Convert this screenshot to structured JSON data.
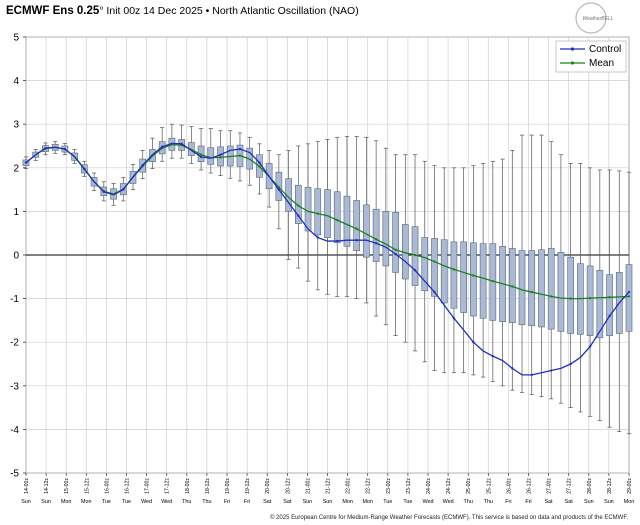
{
  "title": {
    "model": "ECMWF Ens 0.25",
    "degree": "°",
    "rest": " Init 00z 14 Dec 2025 • North Atlantic Oscillation (NAO)"
  },
  "credit": "© 2025 European Centre for Medium-Range Weather Forecasts (ECMWF). This service is based on data and products of the ECMWF.",
  "logo": {
    "text": "WeatherBELL"
  },
  "colors": {
    "control": "#1f2fbf",
    "mean": "#1e7f1e",
    "box": "#aab9d6",
    "box_edge": "#556677",
    "whisker": "#555555",
    "grid": "#cfcfcf",
    "zero": "#000000"
  },
  "chart_data": {
    "type": "box",
    "ylim": [
      -5,
      5
    ],
    "yticks": [
      5,
      4,
      3,
      2,
      1,
      0,
      -1,
      -2,
      -3,
      -4,
      -5
    ],
    "legend": {
      "position": "top-right",
      "entries": [
        "Control",
        "Mean"
      ]
    },
    "x_date_labels": [
      "14-00z",
      "14-12z",
      "15-00z",
      "15-12z",
      "16-00z",
      "16-12z",
      "17-00z",
      "17-12z",
      "18-00z",
      "18-12z",
      "19-00z",
      "19-12z",
      "20-00z",
      "20-12z",
      "21-00z",
      "21-12z",
      "22-00z",
      "22-12z",
      "23-00z",
      "23-12z",
      "24-00z",
      "24-12z",
      "25-00z",
      "25-12z",
      "26-00z",
      "26-12z",
      "27-00z",
      "27-12z",
      "28-00z",
      "28-12z",
      "29-00z"
    ],
    "x_day_labels": [
      "Sun",
      "Sun",
      "Mon",
      "Mon",
      "Tue",
      "Tue",
      "Wed",
      "Wed",
      "Thu",
      "Thu",
      "Fri",
      "Fri",
      "Sat",
      "Sat",
      "Sun",
      "Sun",
      "Mon",
      "Mon",
      "Tue",
      "Tue",
      "Wed",
      "Wed",
      "Thu",
      "Thu",
      "Fri",
      "Fri",
      "Sat",
      "Sat",
      "Sun",
      "Sun",
      "Mon"
    ],
    "series": [
      {
        "name": "Control",
        "values": [
          2.12,
          2.3,
          2.45,
          2.47,
          2.43,
          2.25,
          1.97,
          1.68,
          1.45,
          1.38,
          1.5,
          1.79,
          2.06,
          2.3,
          2.48,
          2.56,
          2.55,
          2.4,
          2.25,
          2.22,
          2.3,
          2.4,
          2.43,
          2.35,
          2.12,
          1.8,
          1.5,
          1.2,
          0.9,
          0.6,
          0.4,
          0.32,
          0.32,
          0.34,
          0.34,
          0.34,
          0.27,
          0.18,
          0.02,
          -0.15,
          -0.35,
          -0.6,
          -0.85,
          -1.15,
          -1.45,
          -1.72,
          -2.0,
          -2.2,
          -2.32,
          -2.42,
          -2.6,
          -2.75,
          -2.75,
          -2.7,
          -2.65,
          -2.6,
          -2.5,
          -2.35,
          -2.1,
          -1.75,
          -1.4,
          -1.1,
          -0.85
        ]
      },
      {
        "name": "Mean",
        "values": [
          2.12,
          2.3,
          2.44,
          2.47,
          2.43,
          2.26,
          1.98,
          1.68,
          1.46,
          1.4,
          1.51,
          1.78,
          2.04,
          2.27,
          2.45,
          2.53,
          2.52,
          2.42,
          2.3,
          2.23,
          2.24,
          2.26,
          2.28,
          2.2,
          2.03,
          1.8,
          1.55,
          1.32,
          1.13,
          1.0,
          0.95,
          0.9,
          0.8,
          0.7,
          0.6,
          0.48,
          0.36,
          0.25,
          0.12,
          0.05,
          0.0,
          -0.06,
          -0.15,
          -0.25,
          -0.33,
          -0.4,
          -0.47,
          -0.53,
          -0.6,
          -0.66,
          -0.72,
          -0.8,
          -0.85,
          -0.9,
          -0.95,
          -0.99,
          -1.0,
          -1.0,
          -0.99,
          -0.98,
          -0.97,
          -0.96,
          -0.95
        ]
      },
      {
        "name": "Q75",
        "values": [
          2.18,
          2.36,
          2.51,
          2.54,
          2.5,
          2.34,
          2.07,
          1.78,
          1.56,
          1.52,
          1.64,
          1.92,
          2.2,
          2.42,
          2.6,
          2.68,
          2.65,
          2.58,
          2.5,
          2.46,
          2.48,
          2.5,
          2.52,
          2.45,
          2.3,
          2.1,
          1.9,
          1.75,
          1.6,
          1.55,
          1.52,
          1.5,
          1.45,
          1.35,
          1.25,
          1.15,
          1.05,
          1.0,
          0.98,
          0.7,
          0.65,
          0.4,
          0.38,
          0.35,
          0.3,
          0.3,
          0.28,
          0.26,
          0.26,
          0.2,
          0.15,
          0.1,
          0.1,
          0.12,
          0.15,
          0.06,
          -0.05,
          -0.2,
          -0.25,
          -0.35,
          -0.45,
          -0.4,
          -0.22
        ]
      },
      {
        "name": "Q25",
        "values": [
          2.05,
          2.24,
          2.37,
          2.4,
          2.36,
          2.17,
          1.88,
          1.58,
          1.36,
          1.28,
          1.38,
          1.64,
          1.9,
          2.14,
          2.32,
          2.4,
          2.4,
          2.28,
          2.14,
          2.08,
          2.04,
          2.04,
          2.03,
          1.97,
          1.78,
          1.52,
          1.25,
          1.0,
          0.72,
          0.55,
          0.46,
          0.4,
          0.28,
          0.2,
          0.1,
          -0.05,
          -0.15,
          -0.25,
          -0.4,
          -0.55,
          -0.7,
          -0.82,
          -0.95,
          -1.1,
          -1.22,
          -1.32,
          -1.4,
          -1.45,
          -1.5,
          -1.53,
          -1.55,
          -1.6,
          -1.62,
          -1.65,
          -1.7,
          -1.75,
          -1.8,
          -1.82,
          -1.85,
          -1.9,
          -1.85,
          -1.8,
          -1.75
        ]
      },
      {
        "name": "Max",
        "values": [
          2.25,
          2.42,
          2.57,
          2.6,
          2.56,
          2.42,
          2.15,
          1.88,
          1.68,
          1.64,
          1.78,
          2.08,
          2.4,
          2.68,
          2.92,
          3.0,
          2.98,
          2.95,
          2.9,
          2.9,
          2.85,
          2.85,
          2.8,
          2.7,
          2.55,
          2.4,
          2.3,
          2.4,
          2.5,
          2.55,
          2.6,
          2.65,
          2.7,
          2.72,
          2.72,
          2.7,
          2.62,
          2.45,
          2.3,
          2.3,
          2.3,
          2.15,
          2.05,
          2.0,
          2.0,
          2.0,
          2.05,
          2.1,
          2.15,
          2.2,
          2.4,
          2.75,
          2.75,
          2.75,
          2.6,
          2.3,
          2.1,
          2.1,
          2.0,
          1.95,
          1.95,
          1.93,
          1.9
        ]
      },
      {
        "name": "Min",
        "values": [
          1.98,
          2.17,
          2.3,
          2.33,
          2.3,
          2.1,
          1.8,
          1.48,
          1.24,
          1.14,
          1.24,
          1.5,
          1.75,
          1.98,
          2.15,
          2.22,
          2.22,
          2.1,
          1.95,
          1.88,
          1.82,
          1.76,
          1.7,
          1.6,
          1.4,
          1.1,
          0.6,
          -0.1,
          -0.3,
          -0.6,
          -0.8,
          -0.9,
          -0.95,
          -0.95,
          -1.0,
          -1.1,
          -1.4,
          -1.6,
          -1.85,
          -2.0,
          -2.2,
          -2.45,
          -2.65,
          -2.7,
          -2.7,
          -2.7,
          -2.75,
          -2.8,
          -2.9,
          -3.0,
          -3.1,
          -3.15,
          -3.2,
          -3.25,
          -3.3,
          -3.4,
          -3.5,
          -3.6,
          -3.7,
          -3.8,
          -3.95,
          -4.05,
          -4.1
        ]
      }
    ]
  }
}
